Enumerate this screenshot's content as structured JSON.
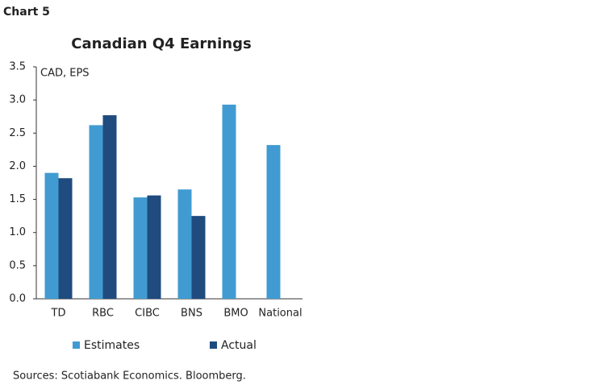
{
  "label": "Chart 5",
  "chart_data": {
    "type": "bar",
    "title": "Canadian Q4 Earnings",
    "unit_label": "CAD, EPS",
    "categories": [
      "TD",
      "RBC",
      "CIBC",
      "BNS",
      "BMO",
      "National"
    ],
    "series": [
      {
        "name": "Estimates",
        "color": "#419bd2",
        "values": [
          1.9,
          2.62,
          1.53,
          1.65,
          2.93,
          2.32
        ]
      },
      {
        "name": "Actual",
        "color": "#1f4b7f",
        "values": [
          1.82,
          2.77,
          1.56,
          1.25,
          null,
          null
        ]
      }
    ],
    "ylim": [
      0,
      3.5
    ],
    "yticks": [
      {
        "value": 0,
        "label": "0.0"
      },
      0.5,
      {
        "value": 1,
        "label": "1.0"
      },
      1.5,
      {
        "value": 2,
        "label": "2.0"
      },
      2.5,
      {
        "value": 3,
        "label": "3.0"
      },
      3.5
    ],
    "grid": false,
    "source": "Sources: Scotiabank Economics. Bloomberg."
  }
}
